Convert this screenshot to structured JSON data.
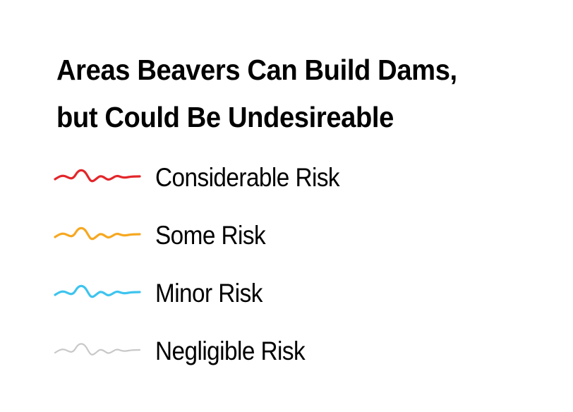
{
  "legend": {
    "title_line1": "Areas Beavers Can Build Dams,",
    "title_line2": "but Could Be Undesireable",
    "items": [
      {
        "label": "Considerable Risk",
        "color": "#e3262a",
        "icon": "squiggly-line-icon"
      },
      {
        "label": "Some Risk",
        "color": "#f6a821",
        "icon": "squiggly-line-icon"
      },
      {
        "label": "Minor Risk",
        "color": "#3ec4ee",
        "icon": "squiggly-line-icon"
      },
      {
        "label": "Negligible Risk",
        "color": "#c8c8c8",
        "icon": "squiggly-line-icon"
      }
    ]
  }
}
